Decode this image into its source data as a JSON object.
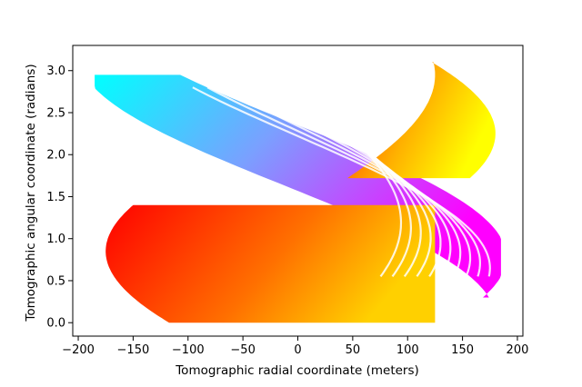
{
  "chart_data": {
    "type": "scatter",
    "title": "",
    "xlabel": "Tomographic radial coordinate (meters)",
    "ylabel": "Tomographic angular coordinate (radians)",
    "xlim": [
      -205,
      205
    ],
    "ylim": [
      -0.16,
      3.3
    ],
    "xticks": [
      -200,
      -150,
      -100,
      -50,
      0,
      50,
      100,
      150,
      200
    ],
    "xtick_labels": [
      "−200",
      "−150",
      "−100",
      "−50",
      "0",
      "50",
      "100",
      "150",
      "200"
    ],
    "yticks": [
      0.0,
      0.5,
      1.0,
      1.5,
      2.0,
      2.5,
      3.0
    ],
    "ytick_labels": [
      "0.0",
      "0.5",
      "1.0",
      "1.5",
      "2.0",
      "2.5",
      "3.0"
    ],
    "grid": false,
    "colormap": [
      "#ff0000",
      "#ff8800",
      "#ffff00",
      "#00ffff",
      "#ff00ff"
    ],
    "sinogram": {
      "theta_range": [
        0.0,
        3.1
      ],
      "r_extent_approx": [
        -185,
        185
      ],
      "num_sinusoids": 10,
      "description_points": [
        {
          "x": -185,
          "y": 2.45
        },
        {
          "x": 185,
          "y": 0.8
        },
        {
          "x": -170,
          "y": 0.7
        },
        {
          "x": 170,
          "y": 2.4
        },
        {
          "x": -115,
          "y": 3.1
        },
        {
          "x": 125,
          "y": 0.0
        }
      ]
    }
  }
}
